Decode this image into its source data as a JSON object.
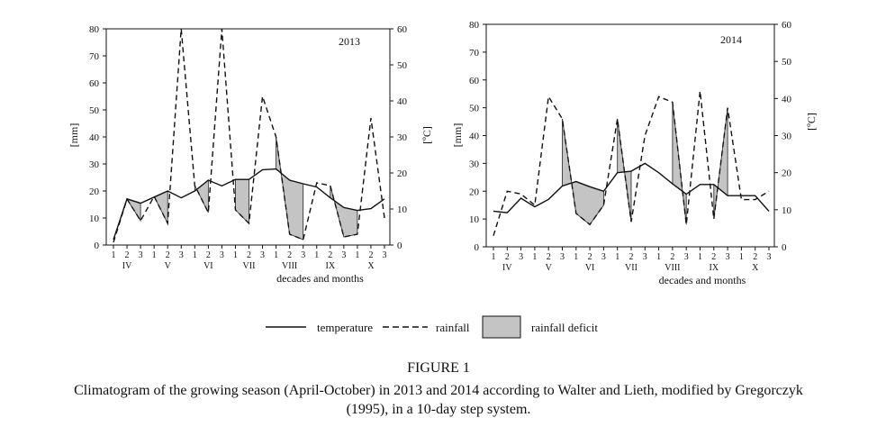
{
  "figure_label": "FIGURE 1",
  "figure_caption_line1": "Climatogram of the growing season (April-October) in 2013 and 2014 according to Walter and Lieth, modified by Gregorczyk",
  "figure_caption_line2": "(1995), in a 10-day step system.",
  "legend": {
    "temperature": "temperature",
    "rainfall": "rainfall",
    "deficit": "rainfall deficit"
  },
  "chart_data": [
    {
      "type": "line",
      "title": "2013",
      "xlabel": "decades and months",
      "ylabel_left": "[mm]",
      "ylabel_right": "[ºC]",
      "ylim_left": [
        0,
        80
      ],
      "ylim_right": [
        0,
        60
      ],
      "yticks_left": [
        "0",
        "10",
        "20",
        "30",
        "40",
        "50",
        "60",
        "70",
        "80"
      ],
      "yticks_right": [
        "0",
        "10",
        "20",
        "30",
        "40",
        "50",
        "60"
      ],
      "decades": [
        "1",
        "2",
        "3",
        "1",
        "2",
        "3",
        "1",
        "2",
        "3",
        "1",
        "2",
        "3",
        "1",
        "2",
        "3",
        "1",
        "2",
        "3",
        "1",
        "2",
        "3"
      ],
      "months": [
        "IV",
        "V",
        "VI",
        "VII",
        "VIII",
        "IX",
        "X"
      ],
      "x": [
        0,
        1,
        2,
        3,
        4,
        5,
        6,
        7,
        8,
        9,
        10,
        11,
        12,
        13,
        14,
        15,
        16,
        17,
        18,
        19,
        20
      ],
      "series": [
        {
          "name": "temperature",
          "axis": "right",
          "values": [
            1.5,
            12.8,
            11.6,
            13.3,
            15.0,
            13.1,
            15.0,
            18.0,
            16.4,
            18.2,
            18.2,
            20.9,
            21.1,
            18.0,
            17.0,
            16.1,
            13.1,
            10.4,
            9.6,
            10.1,
            12.8
          ]
        },
        {
          "name": "rainfall",
          "axis": "left",
          "values": [
            1,
            17,
            9,
            18,
            8,
            80,
            22,
            12,
            80,
            13,
            8,
            55,
            40,
            4,
            2,
            23,
            22,
            3,
            4,
            47,
            10
          ]
        }
      ],
      "deficit_periods": [
        [
          1,
          2
        ],
        [
          3,
          4
        ],
        [
          6,
          7
        ],
        [
          9,
          10
        ],
        [
          12,
          14
        ],
        [
          16,
          18
        ]
      ]
    },
    {
      "type": "line",
      "title": "2014",
      "xlabel": "decades and months",
      "ylabel_left": "[mm]",
      "ylabel_right": "[ºC]",
      "ylim_left": [
        0,
        80
      ],
      "ylim_right": [
        0,
        60
      ],
      "yticks_left": [
        "0",
        "10",
        "20",
        "30",
        "40",
        "50",
        "60",
        "70",
        "80"
      ],
      "yticks_right": [
        "0",
        "10",
        "20",
        "30",
        "40",
        "50",
        "60"
      ],
      "decades": [
        "1",
        "2",
        "3",
        "1",
        "2",
        "3",
        "1",
        "2",
        "3",
        "1",
        "2",
        "3",
        "1",
        "2",
        "3",
        "1",
        "2",
        "3",
        "1",
        "2",
        "3"
      ],
      "months": [
        "IV",
        "V",
        "VI",
        "VII",
        "VIII",
        "IX",
        "X"
      ],
      "x": [
        0,
        1,
        2,
        3,
        4,
        5,
        6,
        7,
        8,
        9,
        10,
        11,
        12,
        13,
        14,
        15,
        16,
        17,
        18,
        19,
        20
      ],
      "series": [
        {
          "name": "temperature",
          "axis": "right",
          "values": [
            9.6,
            9.2,
            13.1,
            10.8,
            12.8,
            16.4,
            17.6,
            16.2,
            15.0,
            20.0,
            20.4,
            22.5,
            20.0,
            17.0,
            14.2,
            16.8,
            16.8,
            13.8,
            13.8,
            13.8,
            9.6
          ]
        },
        {
          "name": "rainfall",
          "axis": "left",
          "values": [
            4,
            20,
            19,
            15,
            54,
            46,
            12,
            8,
            15,
            46,
            9,
            40,
            54,
            52,
            8,
            56,
            10,
            50,
            17,
            17,
            20
          ]
        }
      ],
      "deficit_periods": [
        [
          5,
          8
        ],
        [
          9,
          10
        ],
        [
          13,
          14
        ],
        [
          16,
          17
        ]
      ]
    }
  ]
}
